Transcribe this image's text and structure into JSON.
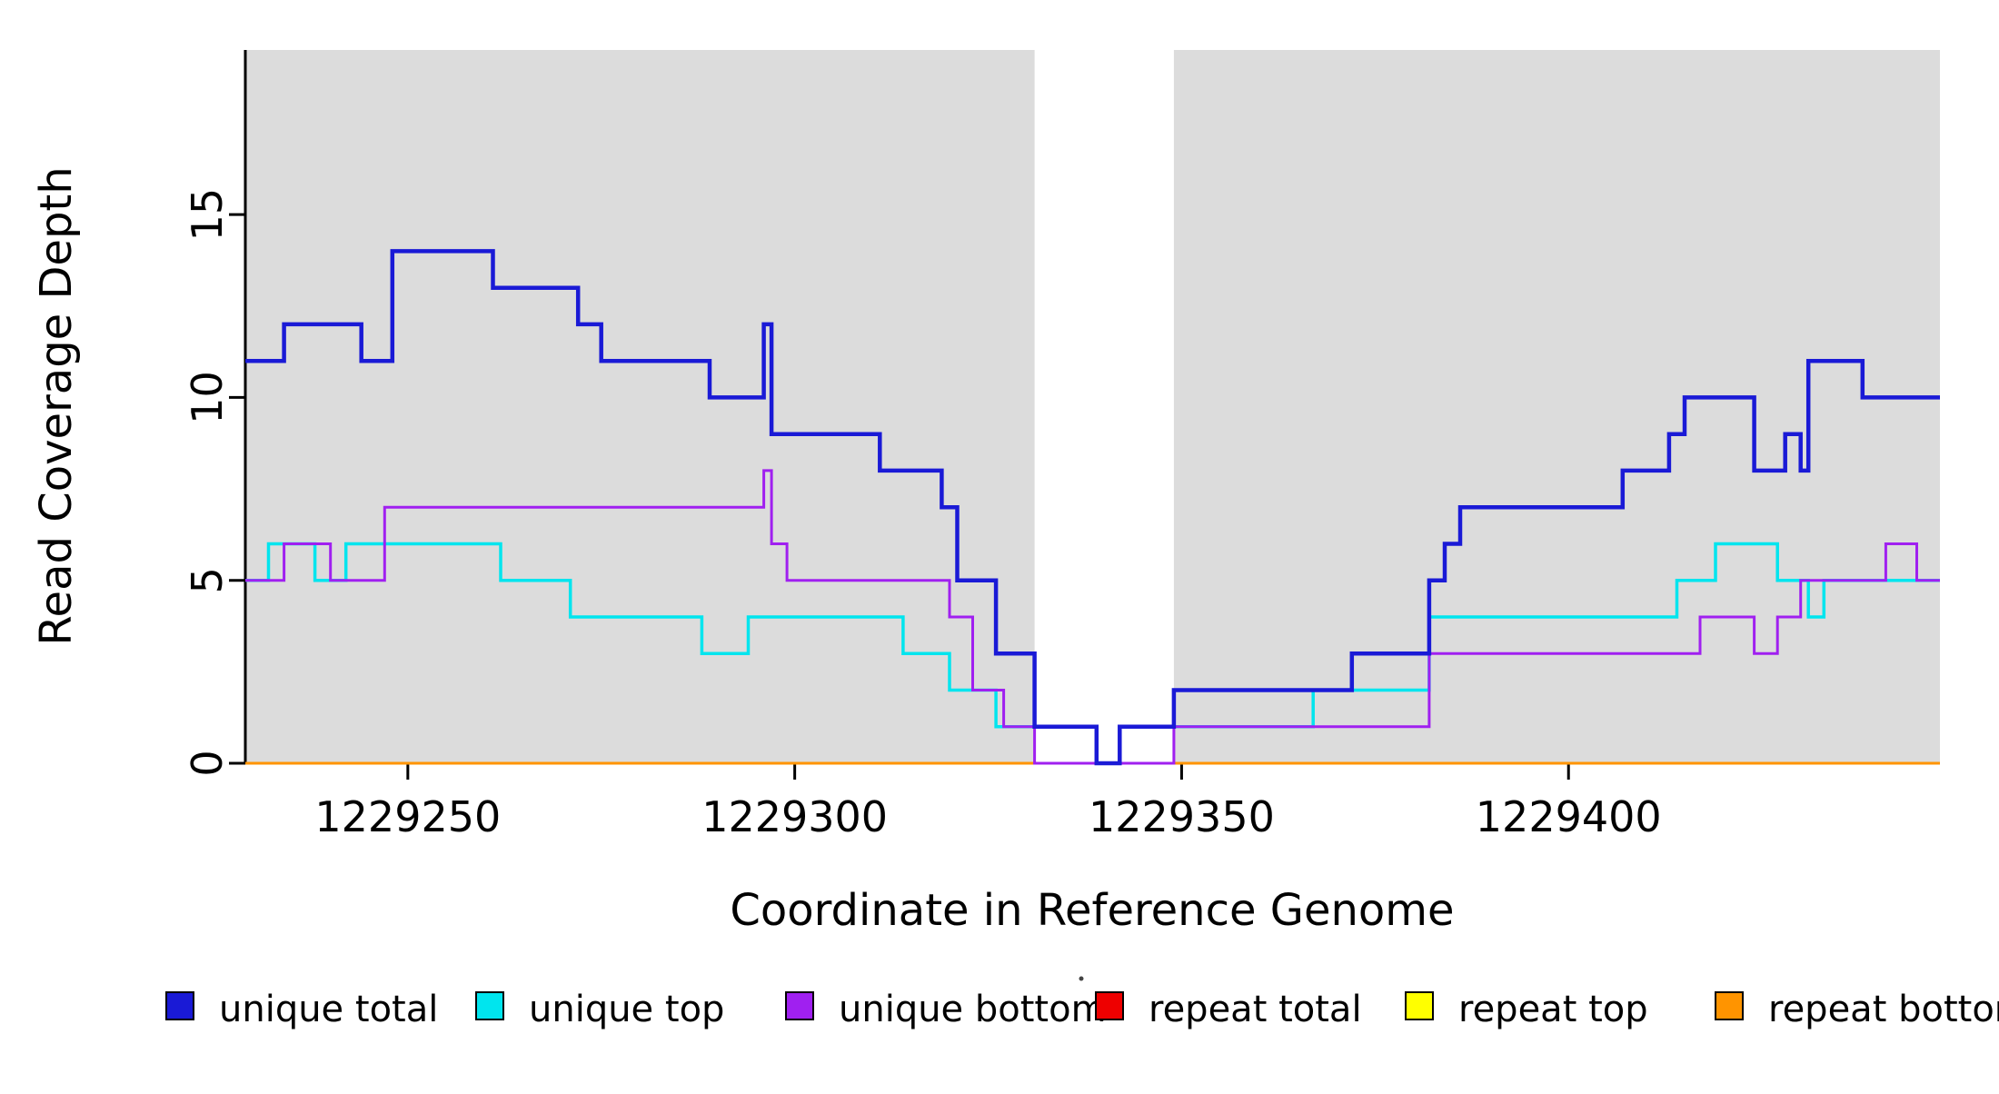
{
  "chart_data": {
    "type": "line",
    "step": "after",
    "title": "",
    "xlabel": "Coordinate in Reference Genome",
    "ylabel": "Read Coverage Depth",
    "xlim": [
      1229229,
      1229448
    ],
    "ylim": [
      0,
      19.5
    ],
    "x_ticks": [
      "1229250",
      "1229300",
      "1229350",
      "1229400"
    ],
    "x_tick_values": [
      1229250,
      1229300,
      1229350,
      1229400
    ],
    "y_ticks": [
      "0",
      "5",
      "10",
      "15"
    ],
    "y_tick_values": [
      0,
      5,
      10,
      15
    ],
    "grid": false,
    "background_color": "#ffffff",
    "background_regions": [
      {
        "x0": 1229229,
        "x1": 1229331,
        "color": "#DCDCDC"
      },
      {
        "x0": 1229349,
        "x1": 1229448,
        "color": "#DCDCDC"
      }
    ],
    "series": [
      {
        "name": "repeat total",
        "color": "#EE0000",
        "width": 3,
        "points": [
          [
            1229229,
            0
          ]
        ]
      },
      {
        "name": "repeat top",
        "color": "#FFFF00",
        "width": 3,
        "points": [
          [
            1229229,
            0
          ]
        ]
      },
      {
        "name": "repeat bottom",
        "color": "#FF9400",
        "width": 3,
        "points": [
          [
            1229229,
            0
          ]
        ]
      },
      {
        "name": "unique top",
        "color": "#00E5EE",
        "width": 3.5,
        "points": [
          [
            1229229,
            5
          ],
          [
            1229232,
            6
          ],
          [
            1229238,
            5
          ],
          [
            1229242,
            6
          ],
          [
            1229262,
            5
          ],
          [
            1229271,
            4
          ],
          [
            1229288,
            3
          ],
          [
            1229294,
            4
          ],
          [
            1229314,
            3
          ],
          [
            1229320,
            2
          ],
          [
            1229326,
            1
          ],
          [
            1229339,
            0
          ],
          [
            1229342,
            1
          ],
          [
            1229367,
            2
          ],
          [
            1229382,
            4
          ],
          [
            1229414,
            5
          ],
          [
            1229419,
            6
          ],
          [
            1229427,
            5
          ],
          [
            1229431,
            4
          ],
          [
            1229433,
            5
          ]
        ]
      },
      {
        "name": "unique bottom",
        "color": "#A020F0",
        "width": 3,
        "points": [
          [
            1229229,
            5
          ],
          [
            1229234,
            6
          ],
          [
            1229240,
            5
          ],
          [
            1229247,
            7
          ],
          [
            1229296,
            8
          ],
          [
            1229297,
            6
          ],
          [
            1229299,
            5
          ],
          [
            1229320,
            4
          ],
          [
            1229323,
            2
          ],
          [
            1229327,
            1
          ],
          [
            1229331,
            0
          ],
          [
            1229349,
            1
          ],
          [
            1229382,
            3
          ],
          [
            1229417,
            4
          ],
          [
            1229424,
            3
          ],
          [
            1229427,
            4
          ],
          [
            1229430,
            5
          ],
          [
            1229441,
            6
          ],
          [
            1229445,
            5
          ]
        ]
      },
      {
        "name": "unique total",
        "color": "#1A1AD6",
        "width": 4.5,
        "points": [
          [
            1229229,
            11
          ],
          [
            1229234,
            12
          ],
          [
            1229244,
            11
          ],
          [
            1229248,
            14
          ],
          [
            1229261,
            13
          ],
          [
            1229272,
            12
          ],
          [
            1229275,
            11
          ],
          [
            1229289,
            10
          ],
          [
            1229296,
            12
          ],
          [
            1229297,
            9
          ],
          [
            1229311,
            8
          ],
          [
            1229319,
            7
          ],
          [
            1229321,
            5
          ],
          [
            1229326,
            3
          ],
          [
            1229331,
            1
          ],
          [
            1229339,
            0
          ],
          [
            1229342,
            1
          ],
          [
            1229349,
            2
          ],
          [
            1229372,
            3
          ],
          [
            1229382,
            5
          ],
          [
            1229384,
            6
          ],
          [
            1229386,
            7
          ],
          [
            1229407,
            8
          ],
          [
            1229413,
            9
          ],
          [
            1229415,
            10
          ],
          [
            1229424,
            8
          ],
          [
            1229428,
            9
          ],
          [
            1229430,
            8
          ],
          [
            1229431,
            11
          ],
          [
            1229438,
            10
          ]
        ]
      }
    ]
  },
  "legend": {
    "items": [
      {
        "label": "unique total",
        "color": "#1A1AD6"
      },
      {
        "label": "unique top",
        "color": "#00E5EE"
      },
      {
        "label": "unique bottom",
        "color": "#A020F0"
      },
      {
        "label": "repeat total",
        "color": "#EE0000"
      },
      {
        "label": "repeat top",
        "color": "#FFFF00"
      },
      {
        "label": "repeat bottom",
        "color": "#FF9400"
      }
    ]
  }
}
